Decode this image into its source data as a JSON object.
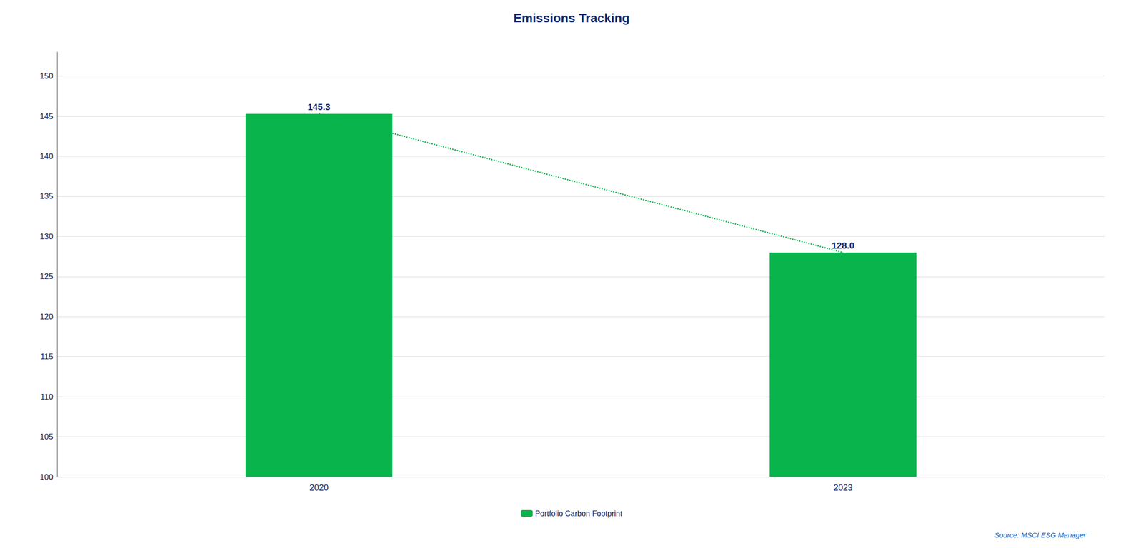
{
  "chart_data": {
    "type": "bar",
    "title": "Emissions Tracking",
    "categories": [
      "2020",
      "2023"
    ],
    "series": [
      {
        "name": "Portfolio Carbon Footprint",
        "color": "#09B44D",
        "values": [
          145.3,
          128.0
        ],
        "value_labels": [
          "145.3",
          "128.0"
        ]
      }
    ],
    "ylim": [
      100,
      153
    ],
    "yticks": [
      100,
      105,
      110,
      115,
      120,
      125,
      130,
      135,
      140,
      145,
      150
    ],
    "grid": true,
    "legend": "bottom",
    "data_labels": true,
    "annotations": [
      "Source: MSCI ESG Manager"
    ]
  }
}
